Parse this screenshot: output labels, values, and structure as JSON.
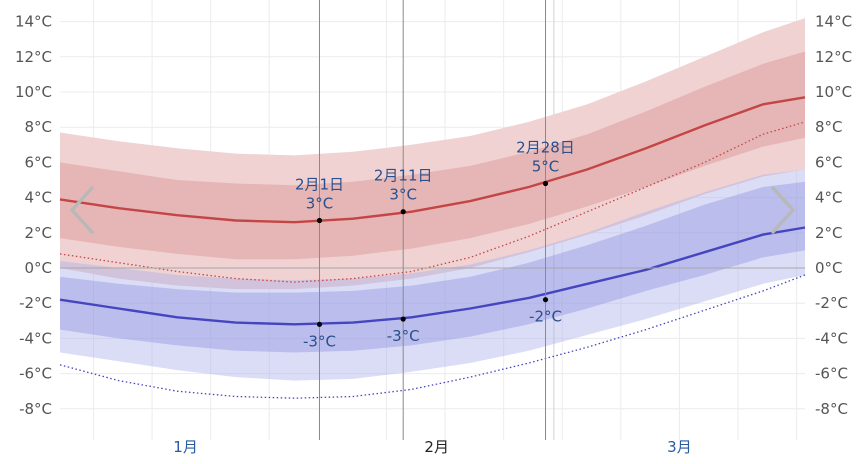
{
  "chart_data": {
    "type": "area",
    "title": "",
    "xlabel": "",
    "ylabel": "",
    "y_unit": "°C",
    "ylim": [
      -9,
      14.5
    ],
    "xlim": [
      "01-01",
      "03-31"
    ],
    "grid": true,
    "y_ticks": [
      14,
      12,
      10,
      8,
      6,
      4,
      2,
      0,
      -2,
      -4,
      -6,
      -8
    ],
    "y_tick_labels": [
      "14°C",
      "12°C",
      "10°C",
      "8°C",
      "6°C",
      "4°C",
      "2°C",
      "0°C",
      "-2°C",
      "-4°C",
      "-6°C",
      "-8°C"
    ],
    "month_labels": [
      {
        "label": "1月",
        "date": "01-16",
        "current": false
      },
      {
        "label": "2月",
        "date": "02-15",
        "current": true
      },
      {
        "label": "3月",
        "date": "03-16",
        "current": false
      }
    ],
    "x": [
      "01-01",
      "01-08",
      "01-15",
      "01-22",
      "01-29",
      "02-05",
      "02-12",
      "02-19",
      "02-26",
      "03-05",
      "03-12",
      "03-19",
      "03-26",
      "03-31"
    ],
    "series": [
      {
        "role": "high_p90",
        "color": "#f0d2d2",
        "values": [
          7.7,
          7.2,
          6.8,
          6.5,
          6.4,
          6.6,
          7.0,
          7.5,
          8.3,
          9.3,
          10.6,
          12.0,
          13.4,
          14.2
        ]
      },
      {
        "role": "high_p75",
        "color": "#e6b6b6",
        "values": [
          6.0,
          5.5,
          5.0,
          4.8,
          4.7,
          4.9,
          5.3,
          5.8,
          6.6,
          7.6,
          8.9,
          10.3,
          11.6,
          12.3
        ]
      },
      {
        "role": "high_mean",
        "color": "#c44545",
        "values": [
          3.9,
          3.4,
          3.0,
          2.7,
          2.6,
          2.8,
          3.2,
          3.8,
          4.6,
          5.6,
          6.8,
          8.1,
          9.3,
          9.7
        ]
      },
      {
        "role": "high_p25",
        "color": "#e6b6b6",
        "values": [
          1.7,
          1.2,
          0.8,
          0.5,
          0.5,
          0.7,
          1.1,
          1.7,
          2.5,
          3.5,
          4.6,
          5.8,
          6.9,
          7.4
        ]
      },
      {
        "role": "high_p10",
        "color": "#f0d2d2",
        "values": [
          0.0,
          -0.6,
          -1.0,
          -1.2,
          -1.2,
          -1.0,
          -0.6,
          0.0,
          0.9,
          1.9,
          3.0,
          4.2,
          5.2,
          5.6
        ]
      },
      {
        "role": "high_p10_line",
        "color": "#c44545",
        "dotted": true,
        "values": [
          0.8,
          0.3,
          -0.2,
          -0.6,
          -0.8,
          -0.6,
          -0.2,
          0.6,
          1.8,
          3.2,
          4.6,
          6.0,
          7.6,
          8.3
        ]
      },
      {
        "role": "low_p90",
        "color": "#d8dbf2",
        "values": [
          0.4,
          0.0,
          -0.4,
          -0.6,
          -0.7,
          -0.6,
          -0.3,
          0.2,
          1.0,
          2.0,
          3.2,
          4.3,
          5.3,
          5.6
        ]
      },
      {
        "role": "low_p75",
        "color": "#c1c5ea",
        "values": [
          -0.5,
          -0.9,
          -1.2,
          -1.4,
          -1.4,
          -1.3,
          -1.0,
          -0.5,
          0.3,
          1.3,
          2.4,
          3.6,
          4.6,
          4.9
        ]
      },
      {
        "role": "low_mean",
        "color": "#4545bf",
        "values": [
          -1.8,
          -2.3,
          -2.8,
          -3.1,
          -3.2,
          -3.1,
          -2.8,
          -2.3,
          -1.7,
          -0.9,
          -0.1,
          0.9,
          1.9,
          2.3
        ]
      },
      {
        "role": "low_p25",
        "color": "#c1c5ea",
        "values": [
          -3.5,
          -4.0,
          -4.4,
          -4.7,
          -4.8,
          -4.7,
          -4.4,
          -3.9,
          -3.2,
          -2.3,
          -1.3,
          -0.4,
          0.6,
          1.0
        ]
      },
      {
        "role": "low_p10",
        "color": "#d8dbf2",
        "values": [
          -4.8,
          -5.3,
          -5.8,
          -6.2,
          -6.4,
          -6.3,
          -5.9,
          -5.4,
          -4.7,
          -3.8,
          -2.9,
          -1.9,
          -0.9,
          -0.4
        ]
      },
      {
        "role": "low_p10_line",
        "color": "#4545bf",
        "dotted": true,
        "values": [
          -5.5,
          -6.4,
          -7.0,
          -7.3,
          -7.4,
          -7.3,
          -6.9,
          -6.2,
          -5.4,
          -4.5,
          -3.5,
          -2.4,
          -1.3,
          -0.4
        ]
      }
    ],
    "markers": [
      {
        "date": "02-01",
        "high": 2.7,
        "low": -3.2,
        "label_date": "2月1日",
        "label_high": "3°C",
        "label_low": "-3°C"
      },
      {
        "date": "02-11",
        "high": 3.2,
        "low": -2.9,
        "label_date": "2月11日",
        "label_high": "3°C",
        "label_low": "-3°C"
      },
      {
        "date": "02-28",
        "high": 4.8,
        "low": -1.8,
        "label_date": "2月28日",
        "label_high": "5°C",
        "label_low": "-2°C"
      }
    ]
  },
  "nav": {
    "prev_icon": "chevron-left-icon",
    "next_icon": "chevron-right-icon"
  }
}
